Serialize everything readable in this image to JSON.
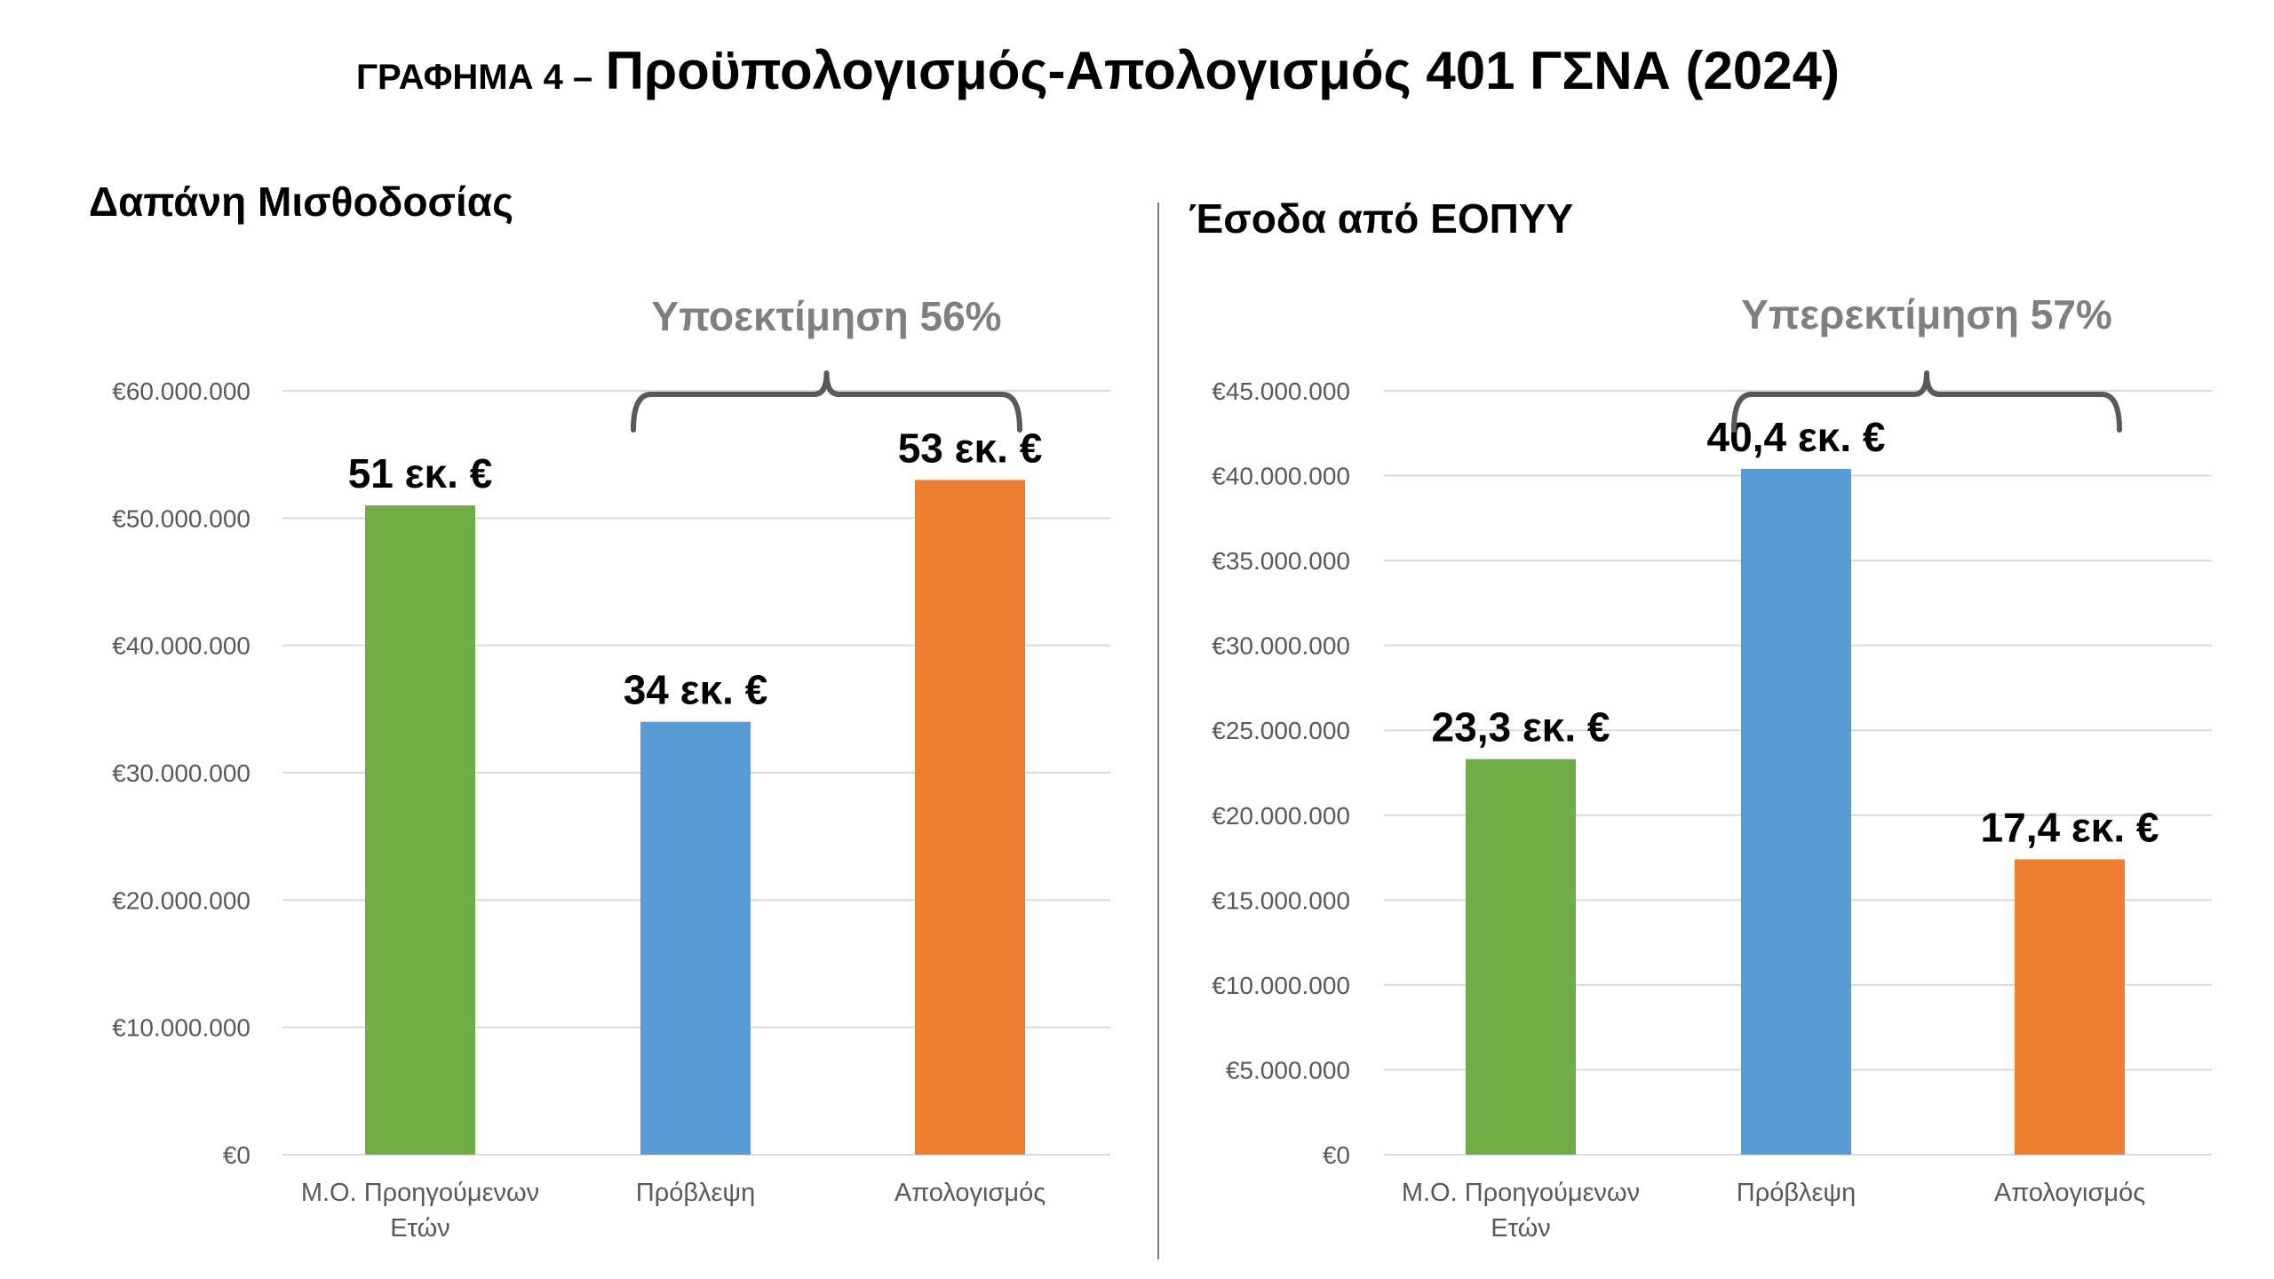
{
  "title": {
    "prefix": "ΓΡΑΦΗΜΑ 4 –",
    "main": "Προϋπολογισμός-Απολογισμός 401 ΓΣΝΑ (2024)"
  },
  "colors": {
    "green": "#70AD47",
    "blue": "#5B9BD5",
    "orange": "#ED7D31",
    "axis_text": "#595959",
    "grid": "#D9D9D9",
    "bracket": "#595959",
    "divider": "#7F7F7F"
  },
  "chart_data": [
    {
      "type": "bar",
      "title": "Δαπάνη Μισθοδοσίας",
      "categories": [
        "Μ.Ο. Προηγούμενων Ετών",
        "Πρόβλεψη",
        "Απολογισμός"
      ],
      "category_lines": [
        [
          "Μ.Ο. Προηγούμενων",
          "Ετών"
        ],
        [
          "Πρόβλεψη"
        ],
        [
          "Απολογισμός"
        ]
      ],
      "values": [
        51000000,
        34000000,
        53000000
      ],
      "value_labels": [
        "51 εκ. €",
        "34 εκ. €",
        "53 εκ. €"
      ],
      "bar_colors": [
        "#70AD47",
        "#5B9BD5",
        "#ED7D31"
      ],
      "ylim": [
        0,
        60000000
      ],
      "yticks": [
        0,
        10000000,
        20000000,
        30000000,
        40000000,
        50000000,
        60000000
      ],
      "ytick_labels": [
        "€0",
        "€10.000.000",
        "€20.000.000",
        "€30.000.000",
        "€40.000.000",
        "€50.000.000",
        "€60.000.000"
      ],
      "grid": true,
      "annotation": {
        "text": "Υποεκτίμηση 56%",
        "from_category": 1,
        "to_category": 2
      }
    },
    {
      "type": "bar",
      "title": "Έσοδα από ΕΟΠΥΥ",
      "categories": [
        "Μ.Ο. Προηγούμενων Ετών",
        "Πρόβλεψη",
        "Απολογισμός"
      ],
      "category_lines": [
        [
          "Μ.Ο. Προηγούμενων",
          "Ετών"
        ],
        [
          "Πρόβλεψη"
        ],
        [
          "Απολογισμός"
        ]
      ],
      "values": [
        23300000,
        40400000,
        17400000
      ],
      "value_labels": [
        "23,3 εκ. €",
        "40,4 εκ. €",
        "17,4 εκ. €"
      ],
      "bar_colors": [
        "#70AD47",
        "#5B9BD5",
        "#ED7D31"
      ],
      "ylim": [
        0,
        45000000
      ],
      "yticks": [
        0,
        5000000,
        10000000,
        15000000,
        20000000,
        25000000,
        30000000,
        35000000,
        40000000,
        45000000
      ],
      "ytick_labels": [
        "€0",
        "€5.000.000",
        "€10.000.000",
        "€15.000.000",
        "€20.000.000",
        "€25.000.000",
        "€30.000.000",
        "€35.000.000",
        "€40.000.000",
        "€45.000.000"
      ],
      "grid": true,
      "annotation": {
        "text": "Υπερεκτίμηση 57%",
        "from_category": 1,
        "to_category": 2
      }
    }
  ]
}
